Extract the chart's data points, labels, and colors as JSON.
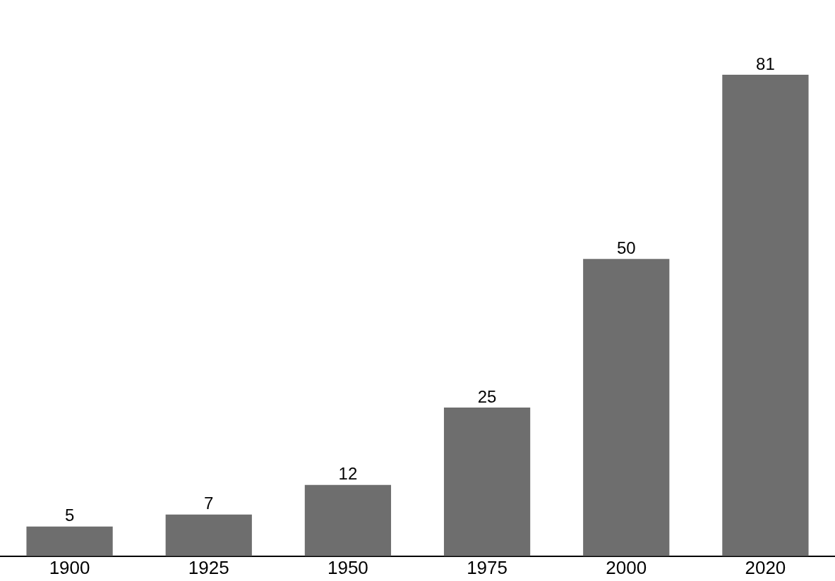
{
  "chart_data": {
    "type": "bar",
    "categories": [
      "1900",
      "1925",
      "1950",
      "1975",
      "2000",
      "2020"
    ],
    "values": [
      5,
      7,
      12,
      25,
      50,
      81
    ],
    "color": "#6e6e6e",
    "data_labels": true,
    "grid": false,
    "legend": false
  }
}
